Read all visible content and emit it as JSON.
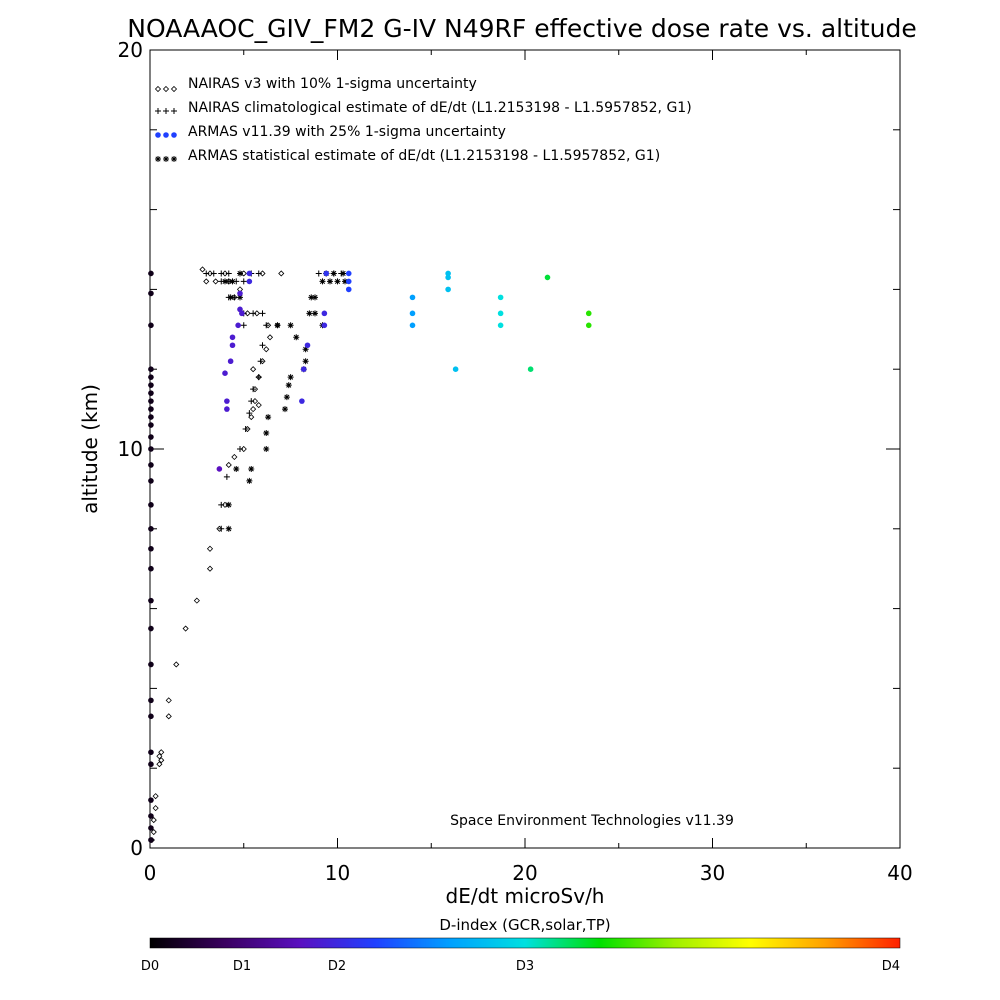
{
  "chart_data": {
    "type": "scatter",
    "title": "NOAAAOC_GIV_FM2 G-IV   N49RF  effective dose rate vs. altitude",
    "xlabel": "dE/dt microSv/h",
    "ylabel": "altitude (km)",
    "xlim": [
      0,
      40
    ],
    "ylim": [
      0,
      20
    ],
    "x_tick_labels": [
      "0",
      "10",
      "20",
      "30",
      "40"
    ],
    "y_tick_labels": [
      "0",
      "10",
      "20"
    ],
    "grid": false,
    "legend_placement": "top-left",
    "legend": [
      {
        "marker": "diamond",
        "label": "NAIRAS v3 with 10% 1-sigma uncertainty"
      },
      {
        "marker": "plus",
        "label": "NAIRAS climatological estimate of dE/dt (L1.2153198 - L1.5957852, G1)"
      },
      {
        "marker": "dot",
        "label": "ARMAS v11.39 with 25% 1-sigma uncertainty"
      },
      {
        "marker": "asterisk",
        "label": "ARMAS statistical estimate of dE/dt (L1.2153198 - L1.5957852, G1)"
      }
    ],
    "annotation": "Space Environment Technologies v11.39",
    "colorbar": {
      "title": "D-index (GCR,solar,TP)",
      "tick_labels": [
        "D0",
        "D1",
        "D2",
        "D3",
        "D4"
      ],
      "tick_values": [
        0,
        1,
        2,
        3,
        4
      ],
      "range": [
        0,
        4
      ],
      "colors": [
        "#000000",
        "#3a0060",
        "#5a10c0",
        "#2040ff",
        "#00a0ff",
        "#00e0e0",
        "#00e000",
        "#a0f000",
        "#ffff00",
        "#ffa000",
        "#ff2000"
      ]
    },
    "series": [
      {
        "name": "NAIRAS v3 with 10% 1-sigma uncertainty",
        "marker": "diamond",
        "points": [
          [
            0.1,
            0.2
          ],
          [
            0.2,
            0.4
          ],
          [
            0.2,
            0.7
          ],
          [
            0.3,
            1.0
          ],
          [
            0.3,
            1.3
          ],
          [
            0.5,
            2.1
          ],
          [
            0.6,
            2.4
          ],
          [
            0.5,
            2.3
          ],
          [
            0.6,
            2.2
          ],
          [
            1.0,
            3.3
          ],
          [
            1.0,
            3.7
          ],
          [
            1.4,
            4.6
          ],
          [
            1.9,
            5.5
          ],
          [
            2.5,
            6.2
          ],
          [
            3.2,
            7.0
          ],
          [
            3.2,
            7.5
          ],
          [
            3.7,
            8.0
          ],
          [
            4.0,
            8.6
          ],
          [
            4.2,
            9.6
          ],
          [
            4.5,
            9.8
          ],
          [
            5.0,
            10.0
          ],
          [
            5.2,
            10.5
          ],
          [
            5.4,
            10.8
          ],
          [
            5.5,
            11.0
          ],
          [
            5.6,
            11.2
          ],
          [
            5.8,
            11.1
          ],
          [
            5.6,
            11.5
          ],
          [
            5.8,
            11.8
          ],
          [
            5.5,
            12.0
          ],
          [
            6.0,
            12.2
          ],
          [
            6.2,
            12.5
          ],
          [
            6.4,
            12.8
          ],
          [
            4.5,
            13.8
          ],
          [
            4.8,
            14.0
          ],
          [
            5.2,
            13.4
          ],
          [
            5.7,
            13.4
          ],
          [
            6.3,
            13.1
          ],
          [
            6.8,
            13.1
          ],
          [
            3.0,
            14.2
          ],
          [
            3.5,
            14.2
          ],
          [
            4.2,
            14.2
          ],
          [
            5.0,
            14.4
          ],
          [
            6.0,
            14.4
          ],
          [
            7.0,
            14.4
          ],
          [
            4.0,
            14.4
          ],
          [
            3.2,
            14.4
          ],
          [
            2.8,
            14.5
          ]
        ]
      },
      {
        "name": "NAIRAS climatological estimate of dE/dt (L1.2153198 - L1.5957852, G1)",
        "marker": "plus",
        "points": [
          [
            3.8,
            8.0
          ],
          [
            3.8,
            8.6
          ],
          [
            4.1,
            9.3
          ],
          [
            4.8,
            10.0
          ],
          [
            5.1,
            10.5
          ],
          [
            5.3,
            10.9
          ],
          [
            5.4,
            11.2
          ],
          [
            5.5,
            11.5
          ],
          [
            5.8,
            11.8
          ],
          [
            5.9,
            12.2
          ],
          [
            6.0,
            12.6
          ],
          [
            5.0,
            13.4
          ],
          [
            5.5,
            13.4
          ],
          [
            6.0,
            13.4
          ],
          [
            6.2,
            13.1
          ],
          [
            5.0,
            13.1
          ],
          [
            4.5,
            13.8
          ],
          [
            4.2,
            13.8
          ],
          [
            3.8,
            14.2
          ],
          [
            4.2,
            14.2
          ],
          [
            4.6,
            14.2
          ],
          [
            5.0,
            14.2
          ],
          [
            5.4,
            14.4
          ],
          [
            5.8,
            14.4
          ],
          [
            3.0,
            14.4
          ],
          [
            3.4,
            14.4
          ],
          [
            3.8,
            14.4
          ],
          [
            4.2,
            14.4
          ],
          [
            9.0,
            14.4
          ],
          [
            9.4,
            14.4
          ],
          [
            9.8,
            14.4
          ],
          [
            10.2,
            14.4
          ]
        ]
      },
      {
        "name": "ARMAS statistical estimate of dE/dt (L1.2153198 - L1.5957852, G1)",
        "marker": "asterisk",
        "points": [
          [
            4.2,
            8.0
          ],
          [
            4.2,
            8.6
          ],
          [
            4.6,
            9.5
          ],
          [
            5.4,
            9.5
          ],
          [
            5.3,
            9.2
          ],
          [
            6.2,
            10.0
          ],
          [
            6.2,
            10.4
          ],
          [
            6.3,
            10.8
          ],
          [
            7.2,
            11.0
          ],
          [
            7.3,
            11.3
          ],
          [
            7.4,
            11.6
          ],
          [
            7.5,
            11.8
          ],
          [
            8.3,
            12.2
          ],
          [
            8.3,
            12.5
          ],
          [
            8.2,
            12.0
          ],
          [
            7.8,
            12.8
          ],
          [
            6.8,
            13.1
          ],
          [
            7.5,
            13.1
          ],
          [
            8.5,
            13.4
          ],
          [
            8.8,
            13.4
          ],
          [
            9.2,
            13.1
          ],
          [
            8.8,
            13.8
          ],
          [
            8.6,
            13.8
          ],
          [
            4.8,
            13.8
          ],
          [
            4.3,
            13.8
          ],
          [
            4.0,
            14.2
          ],
          [
            4.4,
            14.2
          ],
          [
            4.8,
            14.4
          ],
          [
            9.2,
            14.2
          ],
          [
            9.6,
            14.2
          ],
          [
            10.0,
            14.2
          ],
          [
            10.4,
            14.2
          ],
          [
            9.4,
            14.4
          ],
          [
            9.8,
            14.4
          ],
          [
            10.3,
            14.4
          ]
        ]
      },
      {
        "name": "ARMAS v11.39 with 25% 1-sigma uncertainty",
        "marker": "dot",
        "points": [
          {
            "x": 0.05,
            "y": 0.2,
            "d": 0.1
          },
          {
            "x": 0.05,
            "y": 0.5,
            "d": 0.1
          },
          {
            "x": 0.05,
            "y": 0.8,
            "d": 0.1
          },
          {
            "x": 0.05,
            "y": 1.2,
            "d": 0.1
          },
          {
            "x": 0.05,
            "y": 2.1,
            "d": 0.1
          },
          {
            "x": 0.05,
            "y": 2.4,
            "d": 0.1
          },
          {
            "x": 0.05,
            "y": 3.3,
            "d": 0.1
          },
          {
            "x": 0.05,
            "y": 3.7,
            "d": 0.1
          },
          {
            "x": 0.05,
            "y": 4.6,
            "d": 0.1
          },
          {
            "x": 0.05,
            "y": 5.5,
            "d": 0.1
          },
          {
            "x": 0.05,
            "y": 6.2,
            "d": 0.1
          },
          {
            "x": 0.05,
            "y": 7.0,
            "d": 0.1
          },
          {
            "x": 0.05,
            "y": 7.5,
            "d": 0.1
          },
          {
            "x": 0.05,
            "y": 8.0,
            "d": 0.1
          },
          {
            "x": 0.05,
            "y": 8.6,
            "d": 0.1
          },
          {
            "x": 0.05,
            "y": 9.2,
            "d": 0.1
          },
          {
            "x": 0.05,
            "y": 9.6,
            "d": 0.1
          },
          {
            "x": 0.05,
            "y": 10.0,
            "d": 0.1
          },
          {
            "x": 0.05,
            "y": 10.3,
            "d": 0.1
          },
          {
            "x": 0.05,
            "y": 10.6,
            "d": 0.1
          },
          {
            "x": 0.05,
            "y": 10.8,
            "d": 0.1
          },
          {
            "x": 0.05,
            "y": 11.0,
            "d": 0.1
          },
          {
            "x": 0.05,
            "y": 11.2,
            "d": 0.1
          },
          {
            "x": 0.05,
            "y": 11.4,
            "d": 0.1
          },
          {
            "x": 0.05,
            "y": 11.6,
            "d": 0.1
          },
          {
            "x": 0.05,
            "y": 11.8,
            "d": 0.1
          },
          {
            "x": 0.05,
            "y": 12.0,
            "d": 0.1
          },
          {
            "x": 0.05,
            "y": 13.1,
            "d": 0.1
          },
          {
            "x": 0.05,
            "y": 13.9,
            "d": 0.1
          },
          {
            "x": 0.05,
            "y": 14.4,
            "d": 0.1
          },
          {
            "x": 3.7,
            "y": 9.5,
            "d": 0.8
          },
          {
            "x": 4.1,
            "y": 11.0,
            "d": 0.9
          },
          {
            "x": 4.1,
            "y": 11.2,
            "d": 0.9
          },
          {
            "x": 4.0,
            "y": 11.9,
            "d": 0.9
          },
          {
            "x": 4.3,
            "y": 12.2,
            "d": 0.9
          },
          {
            "x": 4.4,
            "y": 12.6,
            "d": 0.9
          },
          {
            "x": 4.4,
            "y": 12.8,
            "d": 0.9
          },
          {
            "x": 4.7,
            "y": 13.1,
            "d": 0.9
          },
          {
            "x": 4.9,
            "y": 13.4,
            "d": 0.9
          },
          {
            "x": 4.8,
            "y": 13.5,
            "d": 0.9
          },
          {
            "x": 4.8,
            "y": 13.9,
            "d": 0.9
          },
          {
            "x": 5.3,
            "y": 14.2,
            "d": 1.0
          },
          {
            "x": 5.3,
            "y": 14.4,
            "d": 1.0
          },
          {
            "x": 8.1,
            "y": 11.2,
            "d": 1.0
          },
          {
            "x": 8.2,
            "y": 12.0,
            "d": 1.0
          },
          {
            "x": 8.4,
            "y": 12.6,
            "d": 1.0
          },
          {
            "x": 9.3,
            "y": 13.1,
            "d": 1.0
          },
          {
            "x": 9.3,
            "y": 13.4,
            "d": 1.0
          },
          {
            "x": 9.4,
            "y": 14.4,
            "d": 1.1
          },
          {
            "x": 10.6,
            "y": 14.4,
            "d": 1.2
          },
          {
            "x": 10.6,
            "y": 14.2,
            "d": 1.2
          },
          {
            "x": 10.6,
            "y": 14.0,
            "d": 1.2
          },
          {
            "x": 14.0,
            "y": 13.1,
            "d": 1.6
          },
          {
            "x": 14.0,
            "y": 13.4,
            "d": 1.6
          },
          {
            "x": 14.0,
            "y": 13.8,
            "d": 1.6
          },
          {
            "x": 15.9,
            "y": 14.0,
            "d": 1.8
          },
          {
            "x": 15.9,
            "y": 14.3,
            "d": 1.8
          },
          {
            "x": 15.9,
            "y": 14.4,
            "d": 1.8
          },
          {
            "x": 16.3,
            "y": 12.0,
            "d": 1.8
          },
          {
            "x": 18.7,
            "y": 13.1,
            "d": 2.0
          },
          {
            "x": 18.7,
            "y": 13.4,
            "d": 2.0
          },
          {
            "x": 18.7,
            "y": 13.8,
            "d": 2.0
          },
          {
            "x": 20.3,
            "y": 12.0,
            "d": 2.2
          },
          {
            "x": 21.2,
            "y": 14.3,
            "d": 2.3
          },
          {
            "x": 23.4,
            "y": 13.1,
            "d": 2.5
          },
          {
            "x": 23.4,
            "y": 13.4,
            "d": 2.5
          }
        ]
      }
    ]
  }
}
